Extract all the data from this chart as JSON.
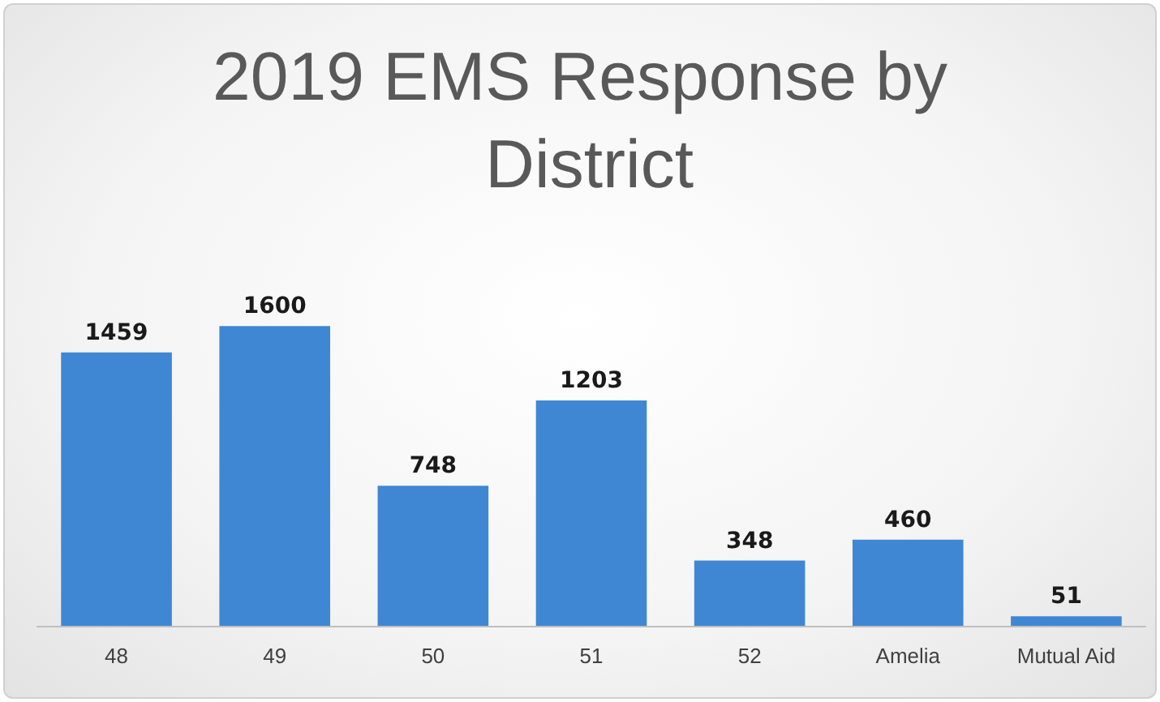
{
  "chart_data": {
    "type": "bar",
    "title": "2019 EMS Response by District",
    "categories": [
      "48",
      "49",
      "50",
      "51",
      "52",
      "Amelia",
      "Mutual Aid"
    ],
    "values": [
      1459,
      1600,
      748,
      1203,
      348,
      460,
      51
    ],
    "color": "#3f87d3",
    "data_labels": true
  }
}
